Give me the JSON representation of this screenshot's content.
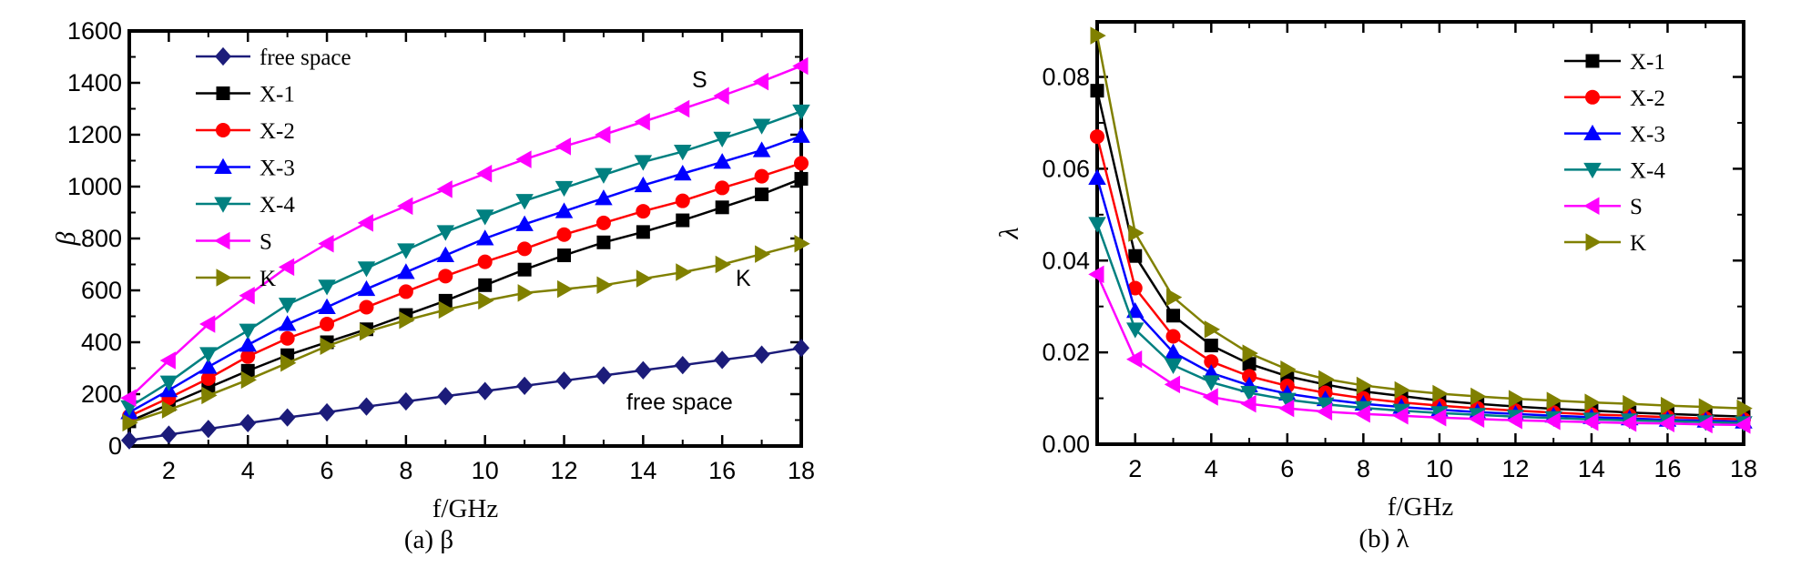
{
  "chart_data": [
    {
      "type": "line",
      "caption": "(a)   β",
      "xlabel": "f/GHz",
      "ylabel": "β",
      "xlim": [
        1,
        18
      ],
      "ylim": [
        0,
        1600
      ],
      "xticks": [
        2,
        4,
        6,
        8,
        10,
        12,
        14,
        16,
        18
      ],
      "yticks": [
        0,
        200,
        400,
        600,
        800,
        1000,
        1200,
        1400,
        1600
      ],
      "grid": false,
      "legend_position": "top-left",
      "annotations": [
        {
          "text": "S",
          "near": "S"
        },
        {
          "text": "K",
          "near": "K"
        },
        {
          "text": "free space",
          "near": "free space"
        }
      ],
      "x": [
        1,
        2,
        3,
        4,
        5,
        6,
        7,
        8,
        9,
        10,
        11,
        12,
        13,
        14,
        15,
        16,
        17,
        18
      ],
      "series": [
        {
          "name": "free space",
          "color": "#1c1c7a",
          "marker": "diamond",
          "values": [
            22,
            44,
            66,
            88,
            110,
            130,
            152,
            172,
            192,
            212,
            232,
            252,
            272,
            292,
            312,
            332,
            352,
            378
          ]
        },
        {
          "name": "X-1",
          "color": "#000000",
          "marker": "square",
          "values": [
            95,
            160,
            225,
            290,
            350,
            400,
            450,
            505,
            560,
            620,
            680,
            735,
            785,
            825,
            870,
            920,
            970,
            1030
          ]
        },
        {
          "name": "X-2",
          "color": "#ff0000",
          "marker": "circle",
          "values": [
            115,
            185,
            260,
            345,
            415,
            470,
            535,
            595,
            655,
            710,
            760,
            815,
            860,
            905,
            945,
            995,
            1040,
            1090
          ]
        },
        {
          "name": "X-3",
          "color": "#0000ff",
          "marker": "triangle-up",
          "values": [
            130,
            215,
            305,
            390,
            470,
            535,
            605,
            670,
            735,
            800,
            855,
            905,
            955,
            1005,
            1050,
            1095,
            1140,
            1195
          ]
        },
        {
          "name": "X-4",
          "color": "#008080",
          "marker": "triangle-down",
          "values": [
            150,
            245,
            355,
            445,
            545,
            615,
            685,
            755,
            825,
            885,
            945,
            995,
            1045,
            1095,
            1135,
            1185,
            1235,
            1290
          ]
        },
        {
          "name": "S",
          "color": "#ff00ff",
          "marker": "triangle-left",
          "values": [
            185,
            330,
            470,
            580,
            690,
            780,
            860,
            925,
            990,
            1050,
            1105,
            1155,
            1200,
            1250,
            1300,
            1350,
            1405,
            1465
          ]
        },
        {
          "name": "K",
          "color": "#808000",
          "marker": "triangle-right",
          "values": [
            90,
            140,
            195,
            255,
            320,
            385,
            440,
            485,
            525,
            560,
            590,
            605,
            620,
            645,
            670,
            700,
            740,
            780
          ]
        }
      ]
    },
    {
      "type": "line",
      "caption": "(b)   λ",
      "xlabel": "f/GHz",
      "ylabel": "λ",
      "xlim": [
        1,
        18
      ],
      "ylim": [
        0,
        0.092
      ],
      "xticks": [
        2,
        4,
        6,
        8,
        10,
        12,
        14,
        16,
        18
      ],
      "yticks": [
        "0.00",
        "0.02",
        "0.04",
        "0.06",
        "0.08"
      ],
      "grid": false,
      "legend_position": "top-right",
      "x": [
        1,
        2,
        3,
        4,
        5,
        6,
        7,
        8,
        9,
        10,
        11,
        12,
        13,
        14,
        15,
        16,
        17,
        18
      ],
      "series": [
        {
          "name": "X-1",
          "color": "#000000",
          "marker": "square",
          "values": [
            0.077,
            0.041,
            0.028,
            0.0215,
            0.0175,
            0.0148,
            0.013,
            0.0115,
            0.0105,
            0.0095,
            0.0088,
            0.0082,
            0.0077,
            0.0073,
            0.0069,
            0.0066,
            0.0063,
            0.006
          ]
        },
        {
          "name": "X-2",
          "color": "#ff0000",
          "marker": "circle",
          "values": [
            0.067,
            0.034,
            0.0235,
            0.018,
            0.0148,
            0.0127,
            0.0112,
            0.01,
            0.0091,
            0.0084,
            0.0078,
            0.0073,
            0.0069,
            0.0065,
            0.0062,
            0.0059,
            0.0056,
            0.0054
          ]
        },
        {
          "name": "X-3",
          "color": "#0000ff",
          "marker": "triangle-up",
          "values": [
            0.058,
            0.029,
            0.02,
            0.0155,
            0.0128,
            0.011,
            0.0098,
            0.0088,
            0.0081,
            0.0075,
            0.007,
            0.0066,
            0.0062,
            0.0059,
            0.0056,
            0.0053,
            0.0051,
            0.0049
          ]
        },
        {
          "name": "X-4",
          "color": "#008080",
          "marker": "triangle-down",
          "values": [
            0.048,
            0.025,
            0.0172,
            0.0135,
            0.0112,
            0.0097,
            0.0087,
            0.0079,
            0.0073,
            0.0068,
            0.0064,
            0.006,
            0.0057,
            0.0054,
            0.0052,
            0.005,
            0.0048,
            0.0046
          ]
        },
        {
          "name": "S",
          "color": "#ff00ff",
          "marker": "triangle-left",
          "values": [
            0.037,
            0.0185,
            0.013,
            0.0103,
            0.0088,
            0.0078,
            0.0071,
            0.0066,
            0.0062,
            0.0058,
            0.0055,
            0.0052,
            0.005,
            0.0048,
            0.0046,
            0.0045,
            0.0043,
            0.0042
          ]
        },
        {
          "name": "K",
          "color": "#808000",
          "marker": "triangle-right",
          "values": [
            0.089,
            0.046,
            0.032,
            0.025,
            0.0198,
            0.0163,
            0.0142,
            0.0128,
            0.0118,
            0.011,
            0.0104,
            0.0099,
            0.0095,
            0.0091,
            0.0088,
            0.0084,
            0.0081,
            0.0078
          ]
        }
      ]
    }
  ]
}
